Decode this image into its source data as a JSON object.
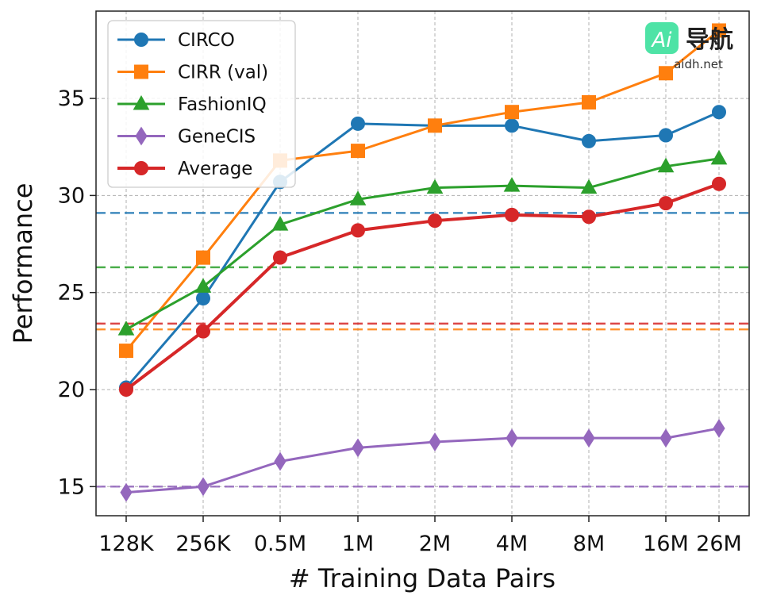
{
  "chart_data": {
    "type": "line",
    "title": "",
    "xlabel": "# Training Data Pairs",
    "ylabel": "Performance",
    "categories": [
      "128K",
      "256K",
      "0.5M",
      "1M",
      "2M",
      "4M",
      "8M",
      "16M",
      "26M"
    ],
    "ylim": [
      13.5,
      39.5
    ],
    "yticks": [
      15,
      20,
      25,
      30,
      35
    ],
    "grid": true,
    "legend_position": "top-left",
    "series": [
      {
        "name": "CIRCO",
        "color": "#1f77b4",
        "marker": "circle",
        "line_width": "normal",
        "values": [
          20.1,
          24.7,
          30.7,
          33.7,
          33.6,
          33.6,
          32.8,
          33.1,
          34.3
        ],
        "baseline": 29.1
      },
      {
        "name": "CIRR (val)",
        "color": "#ff7f0e",
        "marker": "square",
        "line_width": "normal",
        "values": [
          22.0,
          26.8,
          31.8,
          32.3,
          33.6,
          34.3,
          34.8,
          36.3,
          38.5
        ],
        "baseline": 23.1
      },
      {
        "name": "FashionIQ",
        "color": "#2ca02c",
        "marker": "triangle",
        "line_width": "normal",
        "values": [
          23.1,
          25.3,
          28.5,
          29.8,
          30.4,
          30.5,
          30.4,
          31.5,
          31.9
        ],
        "baseline": 26.3
      },
      {
        "name": "GeneCIS",
        "color": "#9467bd",
        "marker": "diamond",
        "line_width": "normal",
        "values": [
          14.7,
          15.0,
          16.3,
          17.0,
          17.3,
          17.5,
          17.5,
          17.5,
          18.0
        ],
        "baseline": 15.0
      },
      {
        "name": "Average",
        "color": "#d62728",
        "marker": "circle",
        "line_width": "thick",
        "values": [
          20.0,
          23.0,
          26.8,
          28.2,
          28.7,
          29.0,
          28.9,
          29.6,
          30.6
        ],
        "baseline": 23.4
      }
    ]
  },
  "watermark": {
    "brand_ai": "Ai",
    "brand_cn": "导航",
    "site": "aidh.net",
    "accent": "#4ee3a6"
  }
}
